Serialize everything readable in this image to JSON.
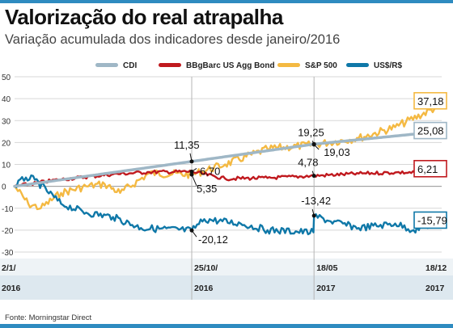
{
  "header": {
    "title": "Valorização do real atrapalha",
    "subtitle": "Variação acumulada dos indicadores desde janeiro/2016"
  },
  "source": "Fonte: Morningstar Direct",
  "colors": {
    "cdi": "#9fb7c6",
    "bond": "#c0191e",
    "sp500": "#f4b942",
    "usd": "#0f78a8",
    "accent": "#2e8bc0"
  },
  "chart_data": {
    "type": "line",
    "title": "Valorização do real atrapalha",
    "subtitle": "Variação acumulada dos indicadores desde janeiro/2016",
    "x_ticks": [
      {
        "date": "2/1/",
        "year": "2016"
      },
      {
        "date": "25/10/",
        "year": "2016"
      },
      {
        "date": "18/05",
        "year": "2017"
      },
      {
        "date": "18/12",
        "year": "2017"
      }
    ],
    "ylim": [
      -30,
      50
    ],
    "yticks": [
      "50",
      "40",
      "30",
      "20",
      "10",
      "0",
      "-10",
      "-20",
      "-30"
    ],
    "legend_position": "top",
    "series": [
      {
        "name": "CDI",
        "color": "#9fb7c6",
        "points": [
          [
            "2016-01-02",
            0
          ],
          [
            "2016-10-25",
            11.35
          ],
          [
            "2017-05-18",
            19.25
          ],
          [
            "2017-12-18",
            25.08
          ]
        ]
      },
      {
        "name": "BBgBarc US Agg Bond",
        "color": "#c0191e",
        "points": [
          [
            "2016-01-02",
            0
          ],
          [
            "2016-03-15",
            3
          ],
          [
            "2016-06-15",
            5.5
          ],
          [
            "2016-08-15",
            6.5
          ],
          [
            "2016-10-25",
            6.7
          ],
          [
            "2016-12-20",
            3.5
          ],
          [
            "2017-03-01",
            3.8
          ],
          [
            "2017-05-18",
            4.78
          ],
          [
            "2017-08-01",
            5.8
          ],
          [
            "2017-10-01",
            6.3
          ],
          [
            "2017-12-18",
            6.21
          ]
        ]
      },
      {
        "name": "S&P 500",
        "color": "#f4b942",
        "points": [
          [
            "2016-01-02",
            0
          ],
          [
            "2016-01-25",
            -8
          ],
          [
            "2016-02-15",
            -10
          ],
          [
            "2016-03-20",
            -3
          ],
          [
            "2016-05-01",
            0
          ],
          [
            "2016-06-01",
            1
          ],
          [
            "2016-06-27",
            -3
          ],
          [
            "2016-08-15",
            6
          ],
          [
            "2016-10-25",
            5.35
          ],
          [
            "2016-12-20",
            10
          ],
          [
            "2017-03-01",
            17
          ],
          [
            "2017-05-18",
            19.03
          ],
          [
            "2017-08-01",
            22
          ],
          [
            "2017-10-01",
            27
          ],
          [
            "2017-12-18",
            37.18
          ]
        ]
      },
      {
        "name": "US$/R$",
        "color": "#0f78a8",
        "points": [
          [
            "2016-01-02",
            0
          ],
          [
            "2016-01-21",
            4
          ],
          [
            "2016-02-05",
            3
          ],
          [
            "2016-03-20",
            -8
          ],
          [
            "2016-05-01",
            -12
          ],
          [
            "2016-06-15",
            -14
          ],
          [
            "2016-08-01",
            -19
          ],
          [
            "2016-10-25",
            -20.12
          ],
          [
            "2016-11-15",
            -15
          ],
          [
            "2017-01-15",
            -17
          ],
          [
            "2017-03-01",
            -20
          ],
          [
            "2017-05-17",
            -21
          ],
          [
            "2017-05-18",
            -13.42
          ],
          [
            "2017-06-15",
            -16
          ],
          [
            "2017-08-01",
            -19
          ],
          [
            "2017-10-01",
            -17
          ],
          [
            "2017-11-01",
            -20
          ],
          [
            "2017-12-18",
            -15.79
          ]
        ]
      }
    ],
    "annotations": [
      {
        "label": "11,35",
        "series": "CDI",
        "date": "2016-10-25",
        "value": 11.35
      },
      {
        "label": "6,70",
        "series": "BBgBarc US Agg Bond",
        "date": "2016-10-25",
        "value": 6.7
      },
      {
        "label": "5,35",
        "series": "S&P 500",
        "date": "2016-10-25",
        "value": 5.35
      },
      {
        "label": "-20,12",
        "series": "US$/R$",
        "date": "2016-10-25",
        "value": -20.12
      },
      {
        "label": "19,25",
        "series": "CDI",
        "date": "2017-05-18",
        "value": 19.25
      },
      {
        "label": "19,03",
        "series": "S&P 500",
        "date": "2017-05-18",
        "value": 19.03
      },
      {
        "label": "4,78",
        "series": "BBgBarc US Agg Bond",
        "date": "2017-05-18",
        "value": 4.78
      },
      {
        "label": "-13,42",
        "series": "US$/R$",
        "date": "2017-05-18",
        "value": -13.42
      }
    ],
    "end_labels": [
      {
        "label": "37,18",
        "series": "S&P 500",
        "value": 37.18
      },
      {
        "label": "25,08",
        "series": "CDI",
        "value": 25.08
      },
      {
        "label": "6,21",
        "series": "BBgBarc US Agg Bond",
        "value": 6.21
      },
      {
        "label": "-15,79",
        "series": "US$/R$",
        "value": -15.79
      }
    ]
  }
}
